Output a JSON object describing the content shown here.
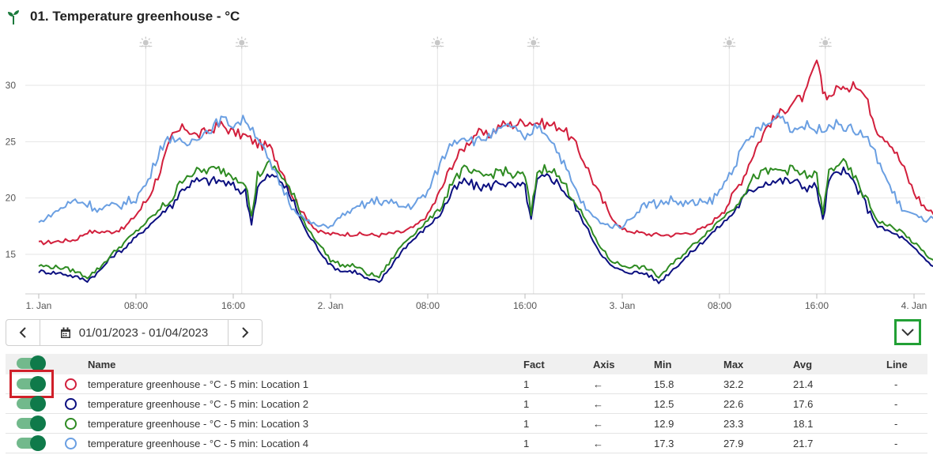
{
  "header": {
    "title": "01. Temperature greenhouse - °C",
    "icon": "seedling-icon"
  },
  "chart_data": {
    "type": "line",
    "title": "01. Temperature greenhouse - °C",
    "xlabel": "",
    "ylabel": "",
    "x_ticks": [
      "1. Jan",
      "08:00",
      "16:00",
      "2. Jan",
      "08:00",
      "16:00",
      "3. Jan",
      "08:00",
      "16:00",
      "4. Jan"
    ],
    "x_tick_hours": [
      0,
      8,
      16,
      24,
      32,
      40,
      48,
      56,
      64,
      72
    ],
    "y_ticks": [
      15,
      20,
      25,
      30
    ],
    "xlim_hours": [
      0,
      72
    ],
    "ylim": [
      12,
      34
    ],
    "grid": true,
    "sun_markers_hours": [
      8.8,
      16.7,
      32.8,
      40.7,
      56.8,
      64.7
    ],
    "series": [
      {
        "name": "temperature greenhouse - °C - 5 min: Location 1",
        "color": "#d21f3c",
        "points": [
          [
            0,
            16.0
          ],
          [
            3,
            16.3
          ],
          [
            4,
            17.0
          ],
          [
            6,
            17.0
          ],
          [
            7,
            17.3
          ],
          [
            8,
            18.5
          ],
          [
            9,
            20.0
          ],
          [
            10,
            22.5
          ],
          [
            11,
            25.5
          ],
          [
            12,
            26.3
          ],
          [
            13,
            25.5
          ],
          [
            14,
            26.0
          ],
          [
            15,
            26.5
          ],
          [
            16,
            25.8
          ],
          [
            17,
            25.5
          ],
          [
            18,
            24.8
          ],
          [
            19,
            24.5
          ],
          [
            20,
            22.5
          ],
          [
            21,
            20.0
          ],
          [
            22,
            18.2
          ],
          [
            23,
            17.0
          ],
          [
            24,
            16.8
          ],
          [
            26,
            16.8
          ],
          [
            28,
            16.7
          ],
          [
            30,
            17.0
          ],
          [
            31,
            17.5
          ],
          [
            32,
            18.5
          ],
          [
            33,
            20.5
          ],
          [
            34,
            23.0
          ],
          [
            35,
            24.5
          ],
          [
            36,
            25.8
          ],
          [
            37,
            25.5
          ],
          [
            38,
            26.5
          ],
          [
            39,
            26.5
          ],
          [
            40,
            26.8
          ],
          [
            41,
            26.7
          ],
          [
            42,
            26.5
          ],
          [
            43,
            26.3
          ],
          [
            44,
            25.0
          ],
          [
            45,
            23.0
          ],
          [
            46,
            20.5
          ],
          [
            47,
            18.5
          ],
          [
            48,
            17.2
          ],
          [
            50,
            16.8
          ],
          [
            52,
            16.7
          ],
          [
            54,
            17.0
          ],
          [
            55,
            17.5
          ],
          [
            56,
            18.5
          ],
          [
            57,
            20.0
          ],
          [
            58,
            22.0
          ],
          [
            59,
            24.5
          ],
          [
            60,
            26.5
          ],
          [
            61,
            27.5
          ],
          [
            62,
            28.5
          ],
          [
            63,
            29.0
          ],
          [
            64,
            32.2
          ],
          [
            64.5,
            29.5
          ],
          [
            65,
            29.0
          ],
          [
            66,
            30.0
          ],
          [
            66.5,
            29.3
          ],
          [
            67,
            30.5
          ],
          [
            68,
            29.0
          ],
          [
            69,
            26.0
          ],
          [
            70,
            25.0
          ],
          [
            71,
            23.0
          ],
          [
            72,
            20.5
          ],
          [
            73,
            19.0
          ],
          [
            74,
            18.5
          ],
          [
            75,
            18.5
          ]
        ]
      },
      {
        "name": "temperature greenhouse - °C - 5 min: Location 2",
        "color": "#0b0f80",
        "points": [
          [
            0,
            13.5
          ],
          [
            2,
            13.3
          ],
          [
            3,
            13.0
          ],
          [
            4,
            12.7
          ],
          [
            5,
            13.5
          ],
          [
            6,
            14.8
          ],
          [
            7,
            15.5
          ],
          [
            8,
            16.5
          ],
          [
            9,
            17.5
          ],
          [
            10,
            18.5
          ],
          [
            11,
            19.5
          ],
          [
            12,
            21.0
          ],
          [
            13,
            21.5
          ],
          [
            14,
            21.5
          ],
          [
            15,
            21.5
          ],
          [
            16,
            21.0
          ],
          [
            17,
            20.5
          ],
          [
            17.5,
            17.8
          ],
          [
            18,
            21.0
          ],
          [
            19,
            22.0
          ],
          [
            20,
            21.5
          ],
          [
            21,
            19.5
          ],
          [
            22,
            17.0
          ],
          [
            23,
            15.5
          ],
          [
            24,
            14.0
          ],
          [
            25,
            13.5
          ],
          [
            26,
            13.5
          ],
          [
            27,
            12.8
          ],
          [
            28,
            12.5
          ],
          [
            29,
            14.0
          ],
          [
            30,
            15.5
          ],
          [
            31,
            16.5
          ],
          [
            32,
            17.5
          ],
          [
            33,
            18.5
          ],
          [
            34,
            20.5
          ],
          [
            35,
            21.5
          ],
          [
            36,
            21.0
          ],
          [
            37,
            21.0
          ],
          [
            38,
            21.5
          ],
          [
            39,
            21.0
          ],
          [
            40,
            21.0
          ],
          [
            40.5,
            18.0
          ],
          [
            41,
            21.5
          ],
          [
            42,
            22.0
          ],
          [
            43,
            21.0
          ],
          [
            44,
            19.5
          ],
          [
            45,
            17.5
          ],
          [
            46,
            15.5
          ],
          [
            47,
            14.0
          ],
          [
            48,
            13.5
          ],
          [
            50,
            13.3
          ],
          [
            51,
            12.5
          ],
          [
            52,
            13.5
          ],
          [
            53,
            14.5
          ],
          [
            54,
            15.5
          ],
          [
            55,
            16.5
          ],
          [
            56,
            17.5
          ],
          [
            57,
            18.5
          ],
          [
            58,
            20.0
          ],
          [
            59,
            21.0
          ],
          [
            60,
            21.5
          ],
          [
            61,
            21.5
          ],
          [
            62,
            21.5
          ],
          [
            63,
            21.0
          ],
          [
            64,
            21.0
          ],
          [
            64.5,
            18.0
          ],
          [
            65,
            21.5
          ],
          [
            66,
            22.5
          ],
          [
            67,
            21.5
          ],
          [
            68,
            19.5
          ],
          [
            69,
            17.5
          ],
          [
            70,
            17.0
          ],
          [
            71,
            16.5
          ],
          [
            72,
            15.5
          ],
          [
            73,
            14.5
          ],
          [
            74,
            13.5
          ]
        ]
      },
      {
        "name": "temperature greenhouse - °C - 5 min: Location 3",
        "color": "#2e8b22",
        "points": [
          [
            0,
            14.0
          ],
          [
            2,
            13.8
          ],
          [
            3,
            13.5
          ],
          [
            4,
            13.0
          ],
          [
            5,
            13.8
          ],
          [
            6,
            15.0
          ],
          [
            7,
            16.0
          ],
          [
            8,
            17.0
          ],
          [
            9,
            18.0
          ],
          [
            10,
            19.0
          ],
          [
            11,
            20.0
          ],
          [
            12,
            22.0
          ],
          [
            13,
            22.3
          ],
          [
            14,
            22.5
          ],
          [
            15,
            22.5
          ],
          [
            16,
            22.0
          ],
          [
            17,
            21.5
          ],
          [
            17.5,
            18.3
          ],
          [
            18,
            22.0
          ],
          [
            19,
            23.0
          ],
          [
            20,
            22.0
          ],
          [
            21,
            20.0
          ],
          [
            22,
            17.5
          ],
          [
            23,
            16.0
          ],
          [
            24,
            14.5
          ],
          [
            25,
            14.0
          ],
          [
            26,
            14.0
          ],
          [
            27,
            13.3
          ],
          [
            28,
            13.0
          ],
          [
            29,
            14.5
          ],
          [
            30,
            16.0
          ],
          [
            31,
            17.0
          ],
          [
            32,
            18.0
          ],
          [
            33,
            19.0
          ],
          [
            34,
            21.5
          ],
          [
            35,
            22.5
          ],
          [
            36,
            22.0
          ],
          [
            37,
            22.0
          ],
          [
            38,
            22.5
          ],
          [
            39,
            22.0
          ],
          [
            40,
            22.0
          ],
          [
            40.5,
            18.5
          ],
          [
            41,
            22.3
          ],
          [
            42,
            22.8
          ],
          [
            43,
            21.5
          ],
          [
            44,
            20.0
          ],
          [
            45,
            18.0
          ],
          [
            46,
            16.0
          ],
          [
            47,
            14.5
          ],
          [
            48,
            14.0
          ],
          [
            50,
            13.8
          ],
          [
            51,
            13.0
          ],
          [
            52,
            14.0
          ],
          [
            53,
            15.0
          ],
          [
            54,
            16.0
          ],
          [
            55,
            17.0
          ],
          [
            56,
            18.0
          ],
          [
            57,
            19.0
          ],
          [
            58,
            20.5
          ],
          [
            59,
            22.0
          ],
          [
            60,
            22.3
          ],
          [
            61,
            22.5
          ],
          [
            62,
            22.5
          ],
          [
            63,
            22.0
          ],
          [
            64,
            22.0
          ],
          [
            64.5,
            18.5
          ],
          [
            65,
            22.3
          ],
          [
            66,
            23.3
          ],
          [
            67,
            22.0
          ],
          [
            68,
            20.0
          ],
          [
            69,
            18.0
          ],
          [
            70,
            17.5
          ],
          [
            71,
            17.0
          ],
          [
            72,
            16.0
          ],
          [
            73,
            15.0
          ],
          [
            74,
            14.0
          ]
        ]
      },
      {
        "name": "temperature greenhouse - °C - 5 min: Location 4",
        "color": "#6a9fe2",
        "points": [
          [
            0,
            17.8
          ],
          [
            1,
            18.5
          ],
          [
            2,
            19.2
          ],
          [
            3,
            19.8
          ],
          [
            4,
            19.5
          ],
          [
            5,
            19.0
          ],
          [
            6,
            19.2
          ],
          [
            7,
            19.5
          ],
          [
            8,
            20.0
          ],
          [
            9,
            21.5
          ],
          [
            10,
            24.5
          ],
          [
            11,
            25.5
          ],
          [
            12,
            24.5
          ],
          [
            13,
            25.5
          ],
          [
            14,
            26.0
          ],
          [
            15,
            27.0
          ],
          [
            16,
            26.5
          ],
          [
            17,
            27.0
          ],
          [
            18,
            25.5
          ],
          [
            19,
            23.0
          ],
          [
            20,
            21.0
          ],
          [
            21,
            19.0
          ],
          [
            22,
            18.0
          ],
          [
            23,
            17.5
          ],
          [
            24,
            17.5
          ],
          [
            25,
            18.5
          ],
          [
            26,
            19.0
          ],
          [
            27,
            19.5
          ],
          [
            28,
            19.8
          ],
          [
            29,
            19.5
          ],
          [
            30,
            19.2
          ],
          [
            31,
            19.5
          ],
          [
            32,
            20.5
          ],
          [
            33,
            23.0
          ],
          [
            34,
            25.0
          ],
          [
            35,
            25.5
          ],
          [
            36,
            25.0
          ],
          [
            37,
            25.5
          ],
          [
            38,
            26.0
          ],
          [
            39,
            26.5
          ],
          [
            40,
            25.0
          ],
          [
            41,
            26.5
          ],
          [
            42,
            25.5
          ],
          [
            43,
            23.5
          ],
          [
            44,
            21.0
          ],
          [
            45,
            19.0
          ],
          [
            46,
            18.0
          ],
          [
            47,
            17.5
          ],
          [
            48,
            17.5
          ],
          [
            49,
            18.5
          ],
          [
            50,
            19.5
          ],
          [
            51,
            19.5
          ],
          [
            52,
            19.8
          ],
          [
            53,
            19.5
          ],
          [
            54,
            19.5
          ],
          [
            55,
            19.5
          ],
          [
            56,
            20.5
          ],
          [
            57,
            22.5
          ],
          [
            58,
            24.5
          ],
          [
            59,
            26.0
          ],
          [
            60,
            26.5
          ],
          [
            61,
            27.5
          ],
          [
            62,
            26.0
          ],
          [
            63,
            26.5
          ],
          [
            64,
            26.0
          ],
          [
            65,
            26.5
          ],
          [
            66,
            26.5
          ],
          [
            67,
            26.0
          ],
          [
            68,
            25.5
          ],
          [
            69,
            23.5
          ],
          [
            70,
            21.0
          ],
          [
            71,
            19.0
          ],
          [
            72,
            18.5
          ],
          [
            73,
            18.0
          ],
          [
            74,
            18.5
          ]
        ]
      }
    ]
  },
  "controls": {
    "date_range": "01/01/2023 - 01/04/2023"
  },
  "table": {
    "headers": {
      "name": "Name",
      "fact": "Fact",
      "axis": "Axis",
      "min": "Min",
      "max": "Max",
      "avg": "Avg",
      "line": "Line"
    },
    "rows": [
      {
        "name": "temperature greenhouse - °C - 5 min: Location 1",
        "fact": "1",
        "axis": "←",
        "min": "15.8",
        "max": "32.2",
        "avg": "21.4",
        "line": "-",
        "color": "#d21f3c"
      },
      {
        "name": "temperature greenhouse - °C - 5 min: Location 2",
        "fact": "1",
        "axis": "←",
        "min": "12.5",
        "max": "22.6",
        "avg": "17.6",
        "line": "-",
        "color": "#0b0f80"
      },
      {
        "name": "temperature greenhouse - °C - 5 min: Location 3",
        "fact": "1",
        "axis": "←",
        "min": "12.9",
        "max": "23.3",
        "avg": "18.1",
        "line": "-",
        "color": "#2e8b22"
      },
      {
        "name": "temperature greenhouse - °C - 5 min: Location 4",
        "fact": "1",
        "axis": "←",
        "min": "17.3",
        "max": "27.9",
        "avg": "21.7",
        "line": "-",
        "color": "#6a9fe2"
      }
    ]
  }
}
